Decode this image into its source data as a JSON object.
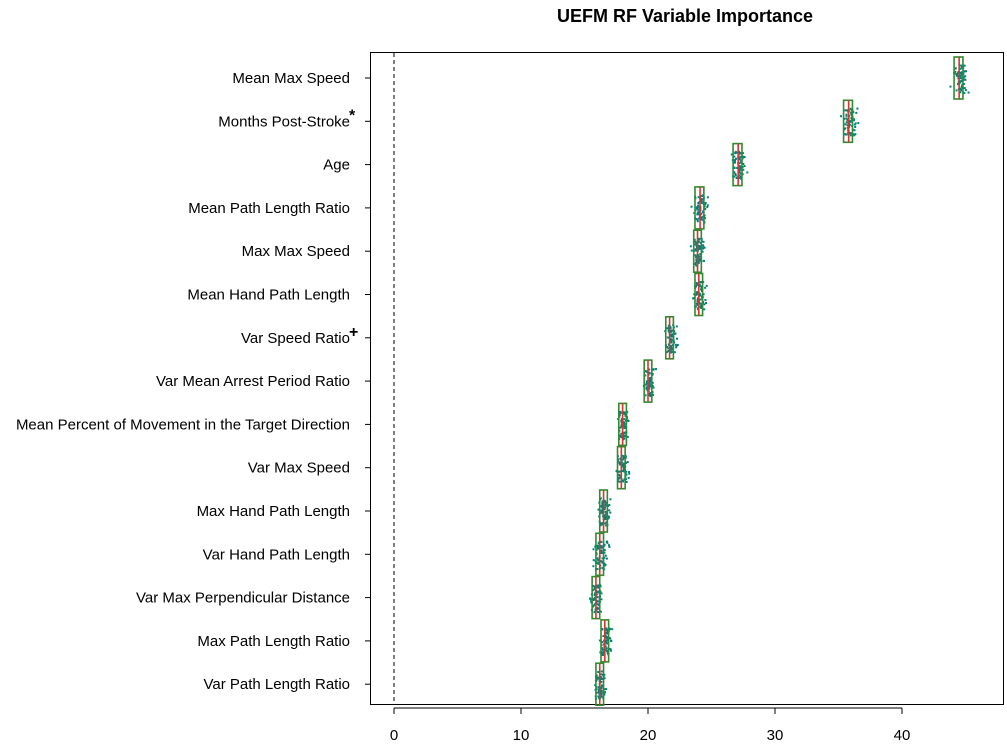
{
  "chart_data": {
    "type": "boxplot",
    "title": "UEFM RF Variable Importance",
    "xlabel": "",
    "ylabel": "",
    "xlim": [
      -9,
      47
    ],
    "x_ticks": [
      0,
      10,
      20,
      30,
      40
    ],
    "reference_line": 0,
    "grid": false,
    "colors": {
      "points": "#008080",
      "box": "#2e8b2e",
      "median": "#e03030"
    },
    "variables": [
      {
        "name": "Mean Max Speed",
        "mark": "",
        "q1": 44.1,
        "median": 44.5,
        "q3": 44.8,
        "spread": 1.0
      },
      {
        "name": "Months Post-Stroke",
        "mark": "*",
        "q1": 35.4,
        "median": 35.8,
        "q3": 36.1,
        "spread": 1.0
      },
      {
        "name": "Age",
        "mark": "",
        "q1": 26.7,
        "median": 27.1,
        "q3": 27.4,
        "spread": 0.9
      },
      {
        "name": "Mean Path Length Ratio",
        "mark": "",
        "q1": 23.7,
        "median": 24.1,
        "q3": 24.4,
        "spread": 0.9
      },
      {
        "name": "Max Max Speed",
        "mark": "",
        "q1": 23.6,
        "median": 23.9,
        "q3": 24.2,
        "spread": 0.8
      },
      {
        "name": "Mean Hand Path Length",
        "mark": "",
        "q1": 23.7,
        "median": 24.0,
        "q3": 24.3,
        "spread": 0.8
      },
      {
        "name": "Var Speed Ratio",
        "mark": "+",
        "q1": 21.4,
        "median": 21.7,
        "q3": 22.0,
        "spread": 0.8
      },
      {
        "name": "Var Mean Arrest Period Ratio",
        "mark": "",
        "q1": 19.7,
        "median": 20.0,
        "q3": 20.3,
        "spread": 0.7
      },
      {
        "name": "Mean Percent of Movement in the Target Direction",
        "mark": "",
        "q1": 17.7,
        "median": 18.0,
        "q3": 18.3,
        "spread": 0.7
      },
      {
        "name": "Var Max Speed",
        "mark": "",
        "q1": 17.6,
        "median": 17.9,
        "q3": 18.2,
        "spread": 0.8
      },
      {
        "name": "Max Hand Path Length",
        "mark": "",
        "q1": 16.2,
        "median": 16.5,
        "q3": 16.8,
        "spread": 0.8
      },
      {
        "name": "Var Hand Path Length",
        "mark": "",
        "q1": 15.9,
        "median": 16.2,
        "q3": 16.5,
        "spread": 0.8
      },
      {
        "name": "Var Max Perpendicular Distance",
        "mark": "",
        "q1": 15.6,
        "median": 15.9,
        "q3": 16.2,
        "spread": 0.8
      },
      {
        "name": "Max Path Length Ratio",
        "mark": "",
        "q1": 16.3,
        "median": 16.6,
        "q3": 16.9,
        "spread": 0.8
      },
      {
        "name": "Var Path Length Ratio",
        "mark": "",
        "q1": 15.9,
        "median": 16.2,
        "q3": 16.5,
        "spread": 0.8
      }
    ]
  }
}
